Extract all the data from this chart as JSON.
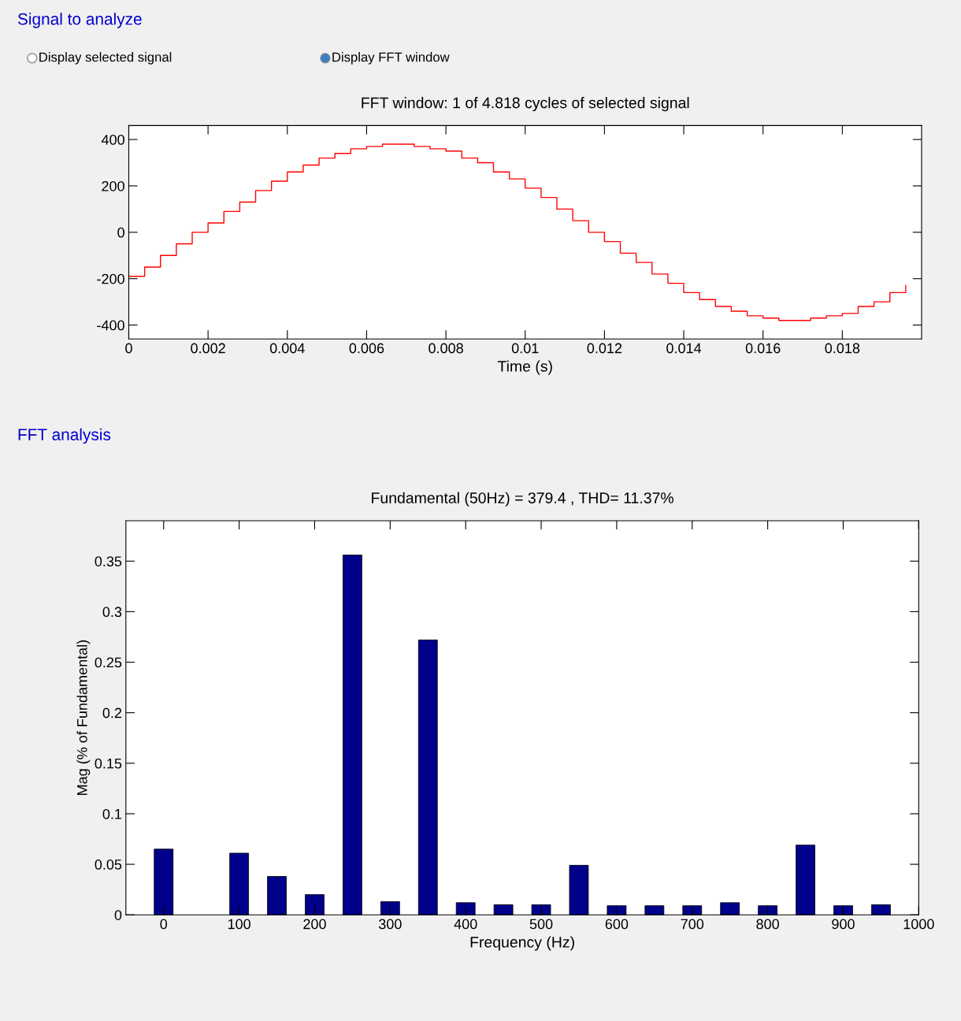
{
  "chart_data": [
    {
      "type": "step",
      "title": "FFT window: 1 of 4.818 cycles of selected signal",
      "xlabel": "Time (s)",
      "annotations": [
        "Signal to analyze",
        "Display selected signal",
        "Display FFT window"
      ],
      "x": [
        0,
        0.0004,
        0.0008,
        0.0012,
        0.0016,
        0.002,
        0.0024,
        0.0028,
        0.0032,
        0.0036,
        0.004,
        0.0044,
        0.0048,
        0.0052,
        0.0056,
        0.006,
        0.0064,
        0.0068,
        0.0072,
        0.0076,
        0.008,
        0.0084,
        0.0088,
        0.0092,
        0.0096,
        0.01,
        0.0104,
        0.0108,
        0.0112,
        0.0116,
        0.012,
        0.0124,
        0.0128,
        0.0132,
        0.0136,
        0.014,
        0.0144,
        0.0148,
        0.0152,
        0.0156,
        0.016,
        0.0164,
        0.0168,
        0.0172,
        0.0176,
        0.018,
        0.0184,
        0.0188,
        0.0192,
        0.0196
      ],
      "series": [
        {
          "color": "#ff0000",
          "values": [
            -190,
            -150,
            -100,
            -50,
            0,
            40,
            90,
            130,
            180,
            220,
            260,
            290,
            320,
            340,
            360,
            370,
            380,
            380,
            370,
            360,
            350,
            320,
            300,
            260,
            230,
            190,
            150,
            100,
            50,
            0,
            -40,
            -90,
            -130,
            -180,
            -220,
            -260,
            -290,
            -320,
            -340,
            -360,
            -370,
            -380,
            -380,
            -370,
            -360,
            -350,
            -320,
            -300,
            -260,
            -230
          ]
        }
      ],
      "xlim": [
        0,
        0.02
      ],
      "ylim": [
        -460,
        460
      ],
      "xticks": [
        0,
        0.002,
        0.004,
        0.006,
        0.008,
        0.01,
        0.012,
        0.014,
        0.016,
        0.018
      ],
      "yticks": [
        -400,
        -200,
        0,
        200,
        400
      ],
      "grid": false,
      "legend": false
    },
    {
      "type": "bar",
      "title": "Fundamental (50Hz) = 379.4 , THD= 11.37%",
      "xlabel": "Frequency (Hz)",
      "ylabel": "Mag (% of Fundamental)",
      "annotations": [
        "FFT analysis"
      ],
      "x": [
        0,
        50,
        100,
        150,
        200,
        250,
        300,
        350,
        400,
        450,
        500,
        550,
        600,
        650,
        700,
        750,
        800,
        850,
        900,
        950
      ],
      "series": [
        {
          "color": "#00008b",
          "values": [
            0.065,
            null,
            0.061,
            0.038,
            0.02,
            0.356,
            0.013,
            0.272,
            0.012,
            0.01,
            0.01,
            0.049,
            0.009,
            0.009,
            0.009,
            0.012,
            0.009,
            0.069,
            0.009,
            0.01
          ]
        }
      ],
      "xlim": [
        -50,
        1000
      ],
      "ylim": [
        0,
        0.39
      ],
      "xticks": [
        0,
        100,
        200,
        300,
        400,
        500,
        600,
        700,
        800,
        900,
        1000
      ],
      "yticks": [
        0,
        0.05,
        0.1,
        0.15,
        0.2,
        0.25,
        0.3,
        0.35
      ],
      "grid": false,
      "legend": false
    }
  ]
}
